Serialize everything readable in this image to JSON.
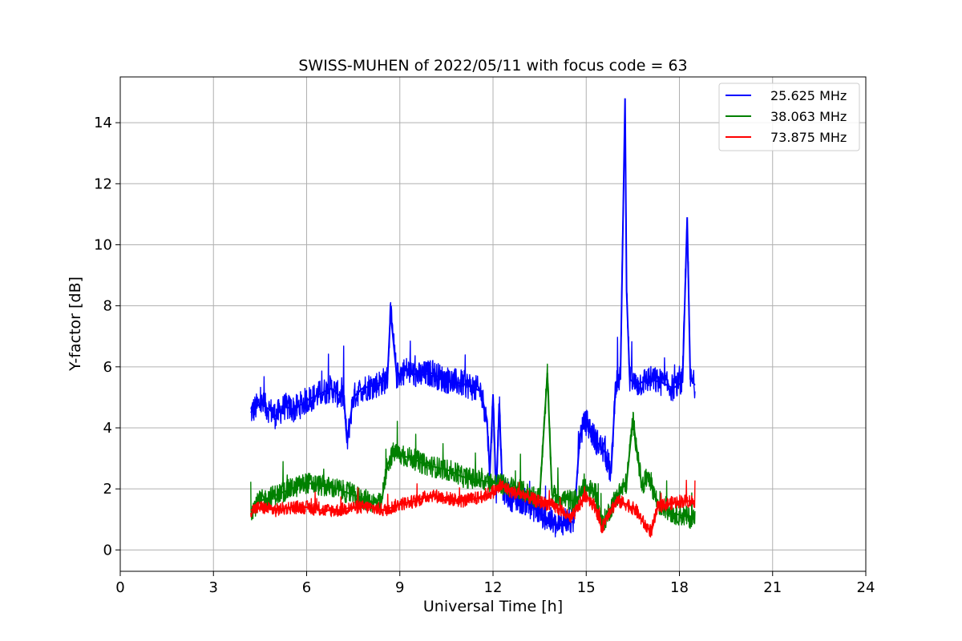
{
  "chart_data": {
    "type": "line",
    "title": "SWISS-MUHEN of 2022/05/11 with focus code = 63",
    "xlabel": "Universal Time [h]",
    "ylabel": "Y-factor [dB]",
    "xlim": [
      0,
      24
    ],
    "ylim": [
      -0.7,
      15.5
    ],
    "xticks": [
      0,
      3,
      6,
      9,
      12,
      15,
      18,
      21,
      24
    ],
    "yticks": [
      0,
      2,
      4,
      6,
      8,
      10,
      12,
      14
    ],
    "grid": true,
    "legend_position": "top-right",
    "series": [
      {
        "name": "25.625 MHz",
        "color": "#0000ff",
        "x": [
          4.2,
          4.5,
          4.8,
          5.0,
          5.3,
          5.6,
          6.0,
          6.4,
          6.8,
          7.0,
          7.2,
          7.3,
          7.5,
          7.8,
          8.2,
          8.6,
          8.7,
          8.9,
          9.2,
          9.6,
          10.0,
          10.4,
          10.8,
          11.2,
          11.6,
          11.8,
          11.9,
          12.0,
          12.1,
          12.2,
          12.3,
          12.6,
          13.0,
          13.4,
          13.8,
          14.1,
          14.3,
          14.6,
          14.8,
          15.0,
          15.3,
          15.6,
          15.8,
          15.95,
          16.1,
          16.25,
          16.3,
          16.4,
          16.6,
          17.0,
          17.4,
          17.8,
          18.1,
          18.25,
          18.35,
          18.5
        ],
        "values": [
          4.5,
          4.8,
          4.6,
          4.4,
          4.7,
          4.6,
          4.9,
          5.1,
          5.3,
          5.1,
          5.0,
          3.5,
          5.0,
          5.3,
          5.4,
          5.6,
          7.8,
          5.7,
          5.9,
          5.7,
          5.8,
          5.6,
          5.5,
          5.4,
          5.2,
          4.3,
          2.5,
          5.1,
          1.8,
          4.8,
          2.0,
          1.7,
          1.6,
          1.3,
          1.0,
          0.7,
          1.0,
          0.9,
          3.8,
          4.2,
          3.6,
          3.2,
          2.5,
          5.5,
          5.6,
          14.8,
          8.5,
          5.6,
          5.4,
          5.6,
          5.5,
          5.3,
          5.5,
          10.9,
          5.6,
          5.4
        ]
      },
      {
        "name": "38.063 MHz",
        "color": "#008000",
        "x": [
          4.2,
          4.5,
          5.0,
          5.5,
          6.0,
          6.5,
          7.0,
          7.5,
          8.0,
          8.4,
          8.6,
          8.8,
          9.0,
          9.4,
          9.8,
          10.2,
          10.6,
          11.0,
          11.5,
          12.0,
          12.5,
          13.0,
          13.5,
          13.75,
          13.9,
          14.2,
          14.6,
          15.0,
          15.3,
          15.5,
          15.8,
          16.0,
          16.3,
          16.5,
          16.8,
          17.0,
          17.3,
          17.8,
          18.2,
          18.5
        ],
        "values": [
          1.3,
          1.6,
          1.8,
          2.0,
          2.2,
          2.1,
          2.0,
          1.8,
          1.6,
          1.5,
          2.8,
          3.2,
          3.1,
          3.0,
          2.8,
          2.7,
          2.6,
          2.4,
          2.3,
          2.2,
          2.1,
          1.9,
          1.7,
          5.8,
          1.8,
          1.7,
          1.6,
          2.0,
          1.9,
          0.8,
          1.4,
          1.8,
          2.2,
          4.3,
          2.0,
          2.5,
          1.5,
          1.2,
          1.1,
          1.0
        ]
      },
      {
        "name": "73.875 MHz",
        "color": "#ff0000",
        "x": [
          4.2,
          4.5,
          5.0,
          5.5,
          6.0,
          6.5,
          7.0,
          7.5,
          8.0,
          8.5,
          9.0,
          9.5,
          10.0,
          10.5,
          11.0,
          11.5,
          12.0,
          12.3,
          12.6,
          13.0,
          13.4,
          13.8,
          14.2,
          14.5,
          14.8,
          15.0,
          15.3,
          15.5,
          15.7,
          16.0,
          16.3,
          16.6,
          16.9,
          17.1,
          17.3,
          17.6,
          18.0,
          18.5
        ],
        "values": [
          1.3,
          1.4,
          1.3,
          1.4,
          1.4,
          1.3,
          1.3,
          1.4,
          1.4,
          1.3,
          1.5,
          1.6,
          1.8,
          1.7,
          1.6,
          1.7,
          1.9,
          2.1,
          1.9,
          1.8,
          1.6,
          1.5,
          1.3,
          1.0,
          1.5,
          1.8,
          1.4,
          0.7,
          1.2,
          1.6,
          1.5,
          1.3,
          0.8,
          0.6,
          1.4,
          1.5,
          1.6,
          1.6
        ]
      }
    ]
  }
}
